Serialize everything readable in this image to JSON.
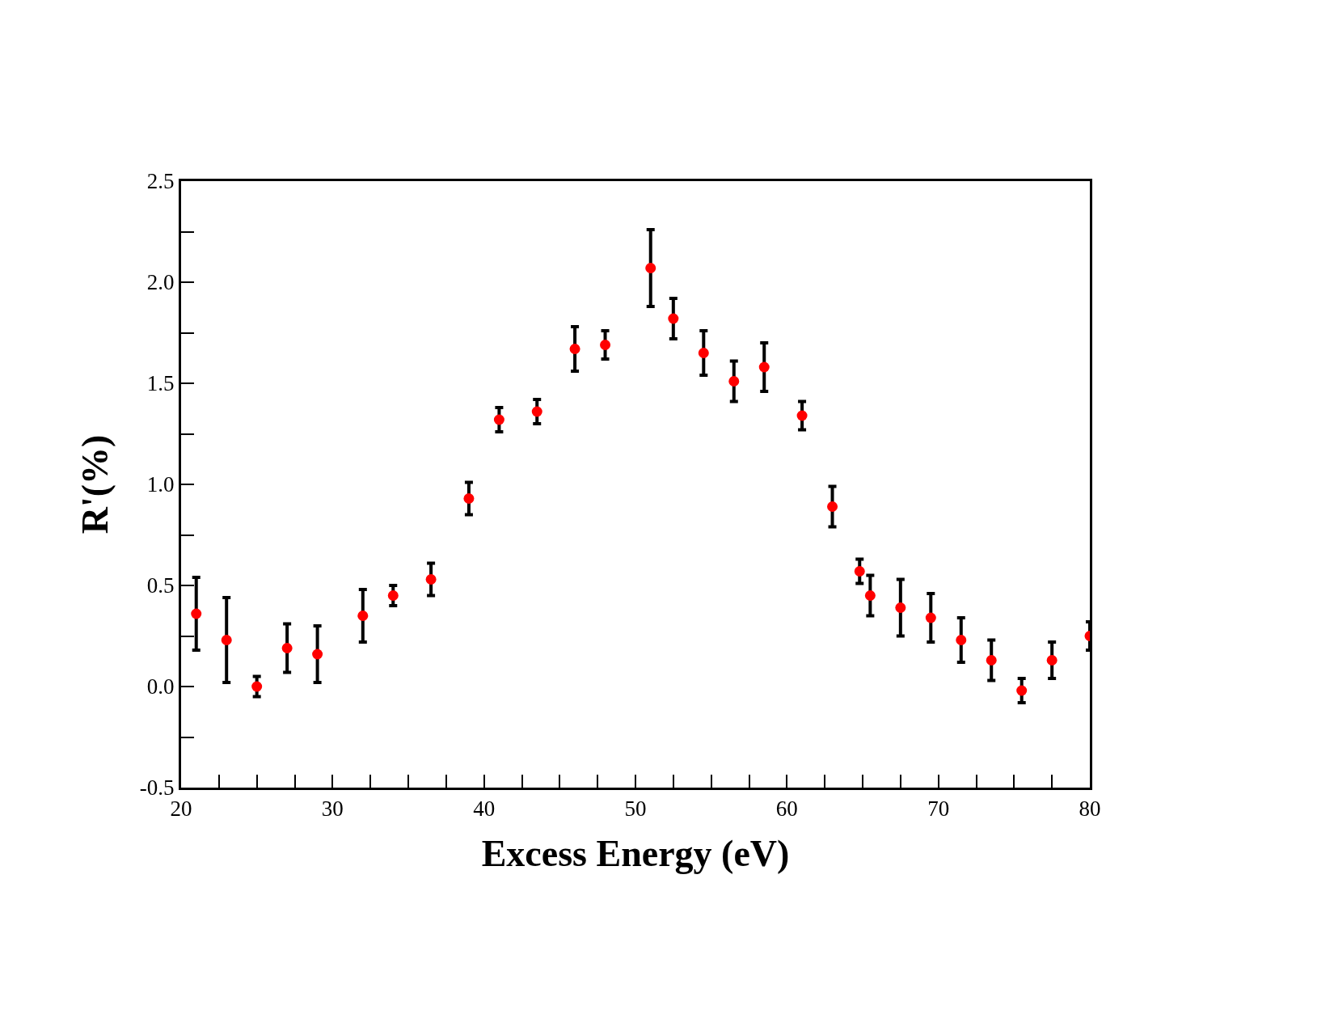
{
  "chart_data": {
    "type": "scatter",
    "xlabel": "Excess Energy (eV)",
    "ylabel": "R'(%)",
    "x": [
      21,
      23,
      25,
      27,
      29,
      32,
      34,
      36.5,
      39,
      41,
      43.5,
      46,
      48,
      51,
      52.5,
      54.5,
      56.5,
      58.5,
      61,
      63,
      64.8,
      65.5,
      67.5,
      69.5,
      71.5,
      73.5,
      75.5,
      77.5,
      80
    ],
    "series": [
      {
        "color": "#ff0000",
        "values": [
          0.36,
          0.23,
          0,
          0.19,
          0.16,
          0.35,
          0.45,
          0.53,
          0.93,
          1.32,
          1.36,
          1.67,
          1.69,
          2.07,
          1.82,
          1.65,
          1.51,
          1.58,
          1.34,
          0.89,
          0.57,
          0.45,
          0.39,
          0.34,
          0.23,
          0.13,
          -0.02,
          0.13,
          0.25
        ],
        "errors": [
          0.18,
          0.21,
          0.05,
          0.12,
          0.14,
          0.13,
          0.05,
          0.08,
          0.08,
          0.06,
          0.06,
          0.11,
          0.07,
          0.19,
          0.1,
          0.11,
          0.1,
          0.12,
          0.07,
          0.1,
          0.06,
          0.1,
          0.14,
          0.12,
          0.11,
          0.1,
          0.06,
          0.09,
          0.07
        ]
      }
    ],
    "xlim": [
      20,
      80
    ],
    "ylim": [
      -0.5,
      2.5
    ],
    "xticks": [
      20,
      {
        "value": 22.5,
        "label": null
      },
      {
        "value": 25,
        "label": null
      },
      {
        "value": 27.5,
        "label": null
      },
      30,
      {
        "value": 32.5,
        "label": null
      },
      {
        "value": 35,
        "label": null
      },
      {
        "value": 37.5,
        "label": null
      },
      40,
      {
        "value": 42.5,
        "label": null
      },
      {
        "value": 45,
        "label": null
      },
      {
        "value": 47.5,
        "label": null
      },
      50,
      {
        "value": 52.5,
        "label": null
      },
      {
        "value": 55,
        "label": null
      },
      {
        "value": 57.5,
        "label": null
      },
      60,
      {
        "value": 62.5,
        "label": null
      },
      {
        "value": 65,
        "label": null
      },
      {
        "value": 67.5,
        "label": null
      },
      70,
      {
        "value": 72.5,
        "label": null
      },
      {
        "value": 75,
        "label": null
      },
      {
        "value": 77.5,
        "label": null
      },
      80
    ],
    "yticks": [
      {
        "value": -0.5,
        "label": "-0.5"
      },
      {
        "value": -0.25,
        "label": null
      },
      {
        "value": 0,
        "label": "0.0"
      },
      {
        "value": 0.25,
        "label": null
      },
      {
        "value": 0.5,
        "label": "0.5"
      },
      {
        "value": 0.75,
        "label": null
      },
      {
        "value": 1,
        "label": "1.0"
      },
      {
        "value": 1.25,
        "label": null
      },
      {
        "value": 1.5,
        "label": "1.5"
      },
      {
        "value": 1.75,
        "label": null
      },
      {
        "value": 2,
        "label": "2.0"
      },
      {
        "value": 2.25,
        "label": null
      },
      {
        "value": 2.5,
        "label": "2.5"
      }
    ],
    "grid": false,
    "marker": "circle"
  }
}
